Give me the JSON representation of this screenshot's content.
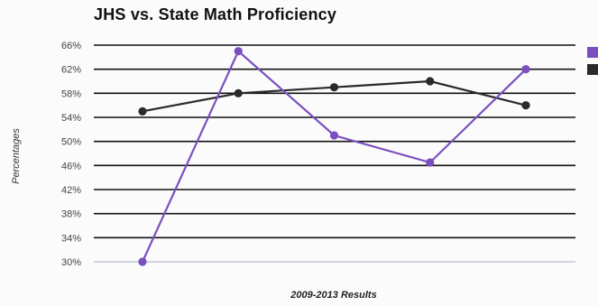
{
  "chart_data": {
    "type": "line",
    "title": "JHS vs. State Math Proficiency",
    "xlabel": "2009-2013 Results",
    "ylabel": "Percentages",
    "ylim": [
      30,
      66
    ],
    "yticks": [
      "66%",
      "62%",
      "58%",
      "54%",
      "50%",
      "46%",
      "42%",
      "38%",
      "34%",
      "30%"
    ],
    "ytick_values": [
      66,
      62,
      58,
      54,
      50,
      46,
      42,
      38,
      34,
      30
    ],
    "grid": true,
    "legend_placement": "top-right",
    "series": [
      {
        "color": "#7a4fbf",
        "values": [
          30,
          65,
          51,
          46.5,
          62
        ]
      },
      {
        "color": "#2a2a2a",
        "values": [
          55,
          58,
          59,
          60,
          56
        ]
      }
    ]
  }
}
